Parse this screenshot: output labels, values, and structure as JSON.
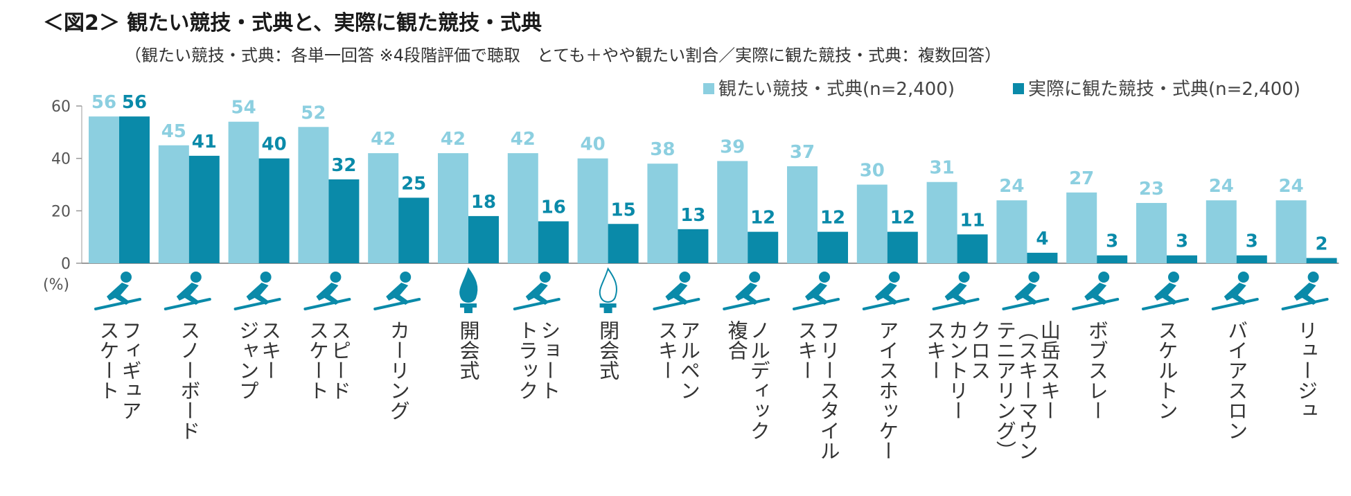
{
  "title": "＜図2＞ 観たい競技・式典と、実際に観た競技・式典",
  "subtitle": "（観たい競技・式典：各単一回答 ※4段階評価で聴取　とても＋やや観たい割合／実際に観た競技・式典：複数回答）",
  "chart_data": {
    "type": "bar",
    "unit_label": "(%)",
    "ylim": [
      0,
      60
    ],
    "yticks": [
      0,
      20,
      40,
      60
    ],
    "legend_position": "top-right",
    "categories": [
      [
        "フィギュア",
        "スケート"
      ],
      [
        "スノーボード"
      ],
      [
        "スキー",
        "ジャンプ"
      ],
      [
        "スピード",
        "スケート"
      ],
      [
        "カーリング"
      ],
      [
        "開会式"
      ],
      [
        "ショート",
        "トラック"
      ],
      [
        "閉会式"
      ],
      [
        "アルペン",
        "スキー"
      ],
      [
        "ノルディック",
        "複合"
      ],
      [
        "フリースタイル",
        "スキー"
      ],
      [
        "アイスホッケー"
      ],
      [
        "クロス",
        "カントリー",
        "スキー"
      ],
      [
        "山岳スキー",
        "（スキーマウン",
        "テニアリング）"
      ],
      [
        "ボブスレー"
      ],
      [
        "スケルトン"
      ],
      [
        "バイアスロン"
      ],
      [
        "リュージュ"
      ]
    ],
    "icons": [
      "figure-skating-icon",
      "snowboard-icon",
      "ski-jumping-icon",
      "speed-skating-icon",
      "curling-icon",
      "flame-icon",
      "short-track-icon",
      "flame-icon",
      "alpine-skiing-icon",
      "nordic-combined-icon",
      "freestyle-skiing-icon",
      "ice-hockey-icon",
      "cross-country-skiing-icon",
      "ski-mountaineering-icon",
      "bobsleigh-icon",
      "skeleton-icon",
      "biathlon-icon",
      "luge-icon"
    ],
    "series": [
      {
        "name": "観たい競技・式典(n=2,400)",
        "color": "#8ccfe0",
        "values": [
          56,
          45,
          54,
          52,
          42,
          42,
          42,
          40,
          38,
          39,
          37,
          30,
          31,
          24,
          27,
          23,
          24,
          24
        ]
      },
      {
        "name": "実際に観た競技・式典(n=2,400)",
        "color": "#0a8aa9",
        "values": [
          56,
          41,
          40,
          32,
          25,
          18,
          16,
          15,
          13,
          12,
          12,
          12,
          11,
          4,
          3,
          3,
          3,
          2
        ]
      }
    ]
  }
}
